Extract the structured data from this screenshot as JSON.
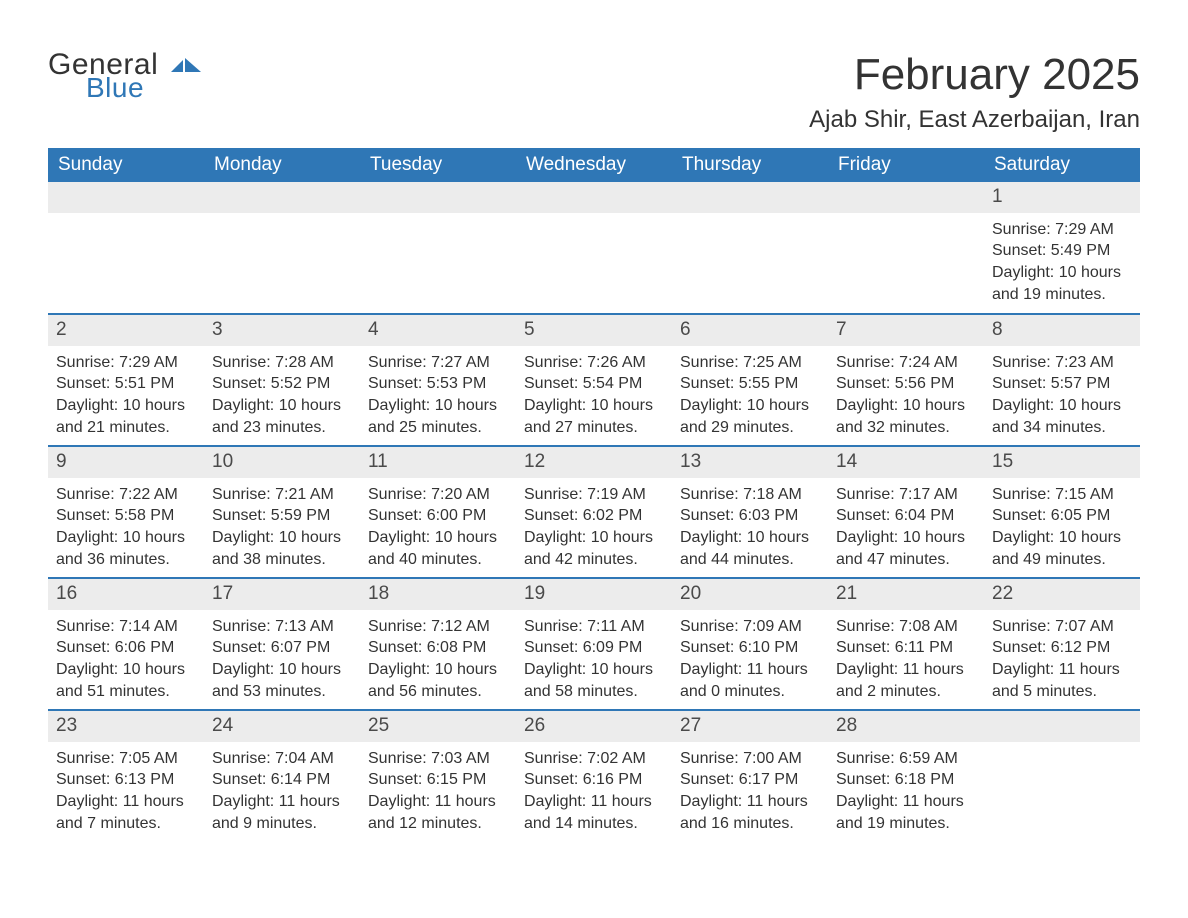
{
  "colors": {
    "header_bg": "#2f77b6",
    "header_text": "#ffffff",
    "band_bg": "#ececec",
    "row_border": "#2f77b6",
    "body_text": "#333333",
    "logo_blue": "#2f77b6",
    "page_bg": "#ffffff"
  },
  "fonts": {
    "month_title_size_pt": 33,
    "location_size_pt": 18,
    "weekday_size_pt": 14,
    "daynum_size_pt": 14,
    "body_size_pt": 12
  },
  "logo": {
    "general": "General",
    "blue": "Blue"
  },
  "title": "February 2025",
  "location": "Ajab Shir, East Azerbaijan, Iran",
  "weekdays": [
    "Sunday",
    "Monday",
    "Tuesday",
    "Wednesday",
    "Thursday",
    "Friday",
    "Saturday"
  ],
  "weeks": [
    [
      null,
      null,
      null,
      null,
      null,
      null,
      {
        "n": "1",
        "sunrise": "Sunrise: 7:29 AM",
        "sunset": "Sunset: 5:49 PM",
        "daylight1": "Daylight: 10 hours",
        "daylight2": "and 19 minutes."
      }
    ],
    [
      {
        "n": "2",
        "sunrise": "Sunrise: 7:29 AM",
        "sunset": "Sunset: 5:51 PM",
        "daylight1": "Daylight: 10 hours",
        "daylight2": "and 21 minutes."
      },
      {
        "n": "3",
        "sunrise": "Sunrise: 7:28 AM",
        "sunset": "Sunset: 5:52 PM",
        "daylight1": "Daylight: 10 hours",
        "daylight2": "and 23 minutes."
      },
      {
        "n": "4",
        "sunrise": "Sunrise: 7:27 AM",
        "sunset": "Sunset: 5:53 PM",
        "daylight1": "Daylight: 10 hours",
        "daylight2": "and 25 minutes."
      },
      {
        "n": "5",
        "sunrise": "Sunrise: 7:26 AM",
        "sunset": "Sunset: 5:54 PM",
        "daylight1": "Daylight: 10 hours",
        "daylight2": "and 27 minutes."
      },
      {
        "n": "6",
        "sunrise": "Sunrise: 7:25 AM",
        "sunset": "Sunset: 5:55 PM",
        "daylight1": "Daylight: 10 hours",
        "daylight2": "and 29 minutes."
      },
      {
        "n": "7",
        "sunrise": "Sunrise: 7:24 AM",
        "sunset": "Sunset: 5:56 PM",
        "daylight1": "Daylight: 10 hours",
        "daylight2": "and 32 minutes."
      },
      {
        "n": "8",
        "sunrise": "Sunrise: 7:23 AM",
        "sunset": "Sunset: 5:57 PM",
        "daylight1": "Daylight: 10 hours",
        "daylight2": "and 34 minutes."
      }
    ],
    [
      {
        "n": "9",
        "sunrise": "Sunrise: 7:22 AM",
        "sunset": "Sunset: 5:58 PM",
        "daylight1": "Daylight: 10 hours",
        "daylight2": "and 36 minutes."
      },
      {
        "n": "10",
        "sunrise": "Sunrise: 7:21 AM",
        "sunset": "Sunset: 5:59 PM",
        "daylight1": "Daylight: 10 hours",
        "daylight2": "and 38 minutes."
      },
      {
        "n": "11",
        "sunrise": "Sunrise: 7:20 AM",
        "sunset": "Sunset: 6:00 PM",
        "daylight1": "Daylight: 10 hours",
        "daylight2": "and 40 minutes."
      },
      {
        "n": "12",
        "sunrise": "Sunrise: 7:19 AM",
        "sunset": "Sunset: 6:02 PM",
        "daylight1": "Daylight: 10 hours",
        "daylight2": "and 42 minutes."
      },
      {
        "n": "13",
        "sunrise": "Sunrise: 7:18 AM",
        "sunset": "Sunset: 6:03 PM",
        "daylight1": "Daylight: 10 hours",
        "daylight2": "and 44 minutes."
      },
      {
        "n": "14",
        "sunrise": "Sunrise: 7:17 AM",
        "sunset": "Sunset: 6:04 PM",
        "daylight1": "Daylight: 10 hours",
        "daylight2": "and 47 minutes."
      },
      {
        "n": "15",
        "sunrise": "Sunrise: 7:15 AM",
        "sunset": "Sunset: 6:05 PM",
        "daylight1": "Daylight: 10 hours",
        "daylight2": "and 49 minutes."
      }
    ],
    [
      {
        "n": "16",
        "sunrise": "Sunrise: 7:14 AM",
        "sunset": "Sunset: 6:06 PM",
        "daylight1": "Daylight: 10 hours",
        "daylight2": "and 51 minutes."
      },
      {
        "n": "17",
        "sunrise": "Sunrise: 7:13 AM",
        "sunset": "Sunset: 6:07 PM",
        "daylight1": "Daylight: 10 hours",
        "daylight2": "and 53 minutes."
      },
      {
        "n": "18",
        "sunrise": "Sunrise: 7:12 AM",
        "sunset": "Sunset: 6:08 PM",
        "daylight1": "Daylight: 10 hours",
        "daylight2": "and 56 minutes."
      },
      {
        "n": "19",
        "sunrise": "Sunrise: 7:11 AM",
        "sunset": "Sunset: 6:09 PM",
        "daylight1": "Daylight: 10 hours",
        "daylight2": "and 58 minutes."
      },
      {
        "n": "20",
        "sunrise": "Sunrise: 7:09 AM",
        "sunset": "Sunset: 6:10 PM",
        "daylight1": "Daylight: 11 hours",
        "daylight2": "and 0 minutes."
      },
      {
        "n": "21",
        "sunrise": "Sunrise: 7:08 AM",
        "sunset": "Sunset: 6:11 PM",
        "daylight1": "Daylight: 11 hours",
        "daylight2": "and 2 minutes."
      },
      {
        "n": "22",
        "sunrise": "Sunrise: 7:07 AM",
        "sunset": "Sunset: 6:12 PM",
        "daylight1": "Daylight: 11 hours",
        "daylight2": "and 5 minutes."
      }
    ],
    [
      {
        "n": "23",
        "sunrise": "Sunrise: 7:05 AM",
        "sunset": "Sunset: 6:13 PM",
        "daylight1": "Daylight: 11 hours",
        "daylight2": "and 7 minutes."
      },
      {
        "n": "24",
        "sunrise": "Sunrise: 7:04 AM",
        "sunset": "Sunset: 6:14 PM",
        "daylight1": "Daylight: 11 hours",
        "daylight2": "and 9 minutes."
      },
      {
        "n": "25",
        "sunrise": "Sunrise: 7:03 AM",
        "sunset": "Sunset: 6:15 PM",
        "daylight1": "Daylight: 11 hours",
        "daylight2": "and 12 minutes."
      },
      {
        "n": "26",
        "sunrise": "Sunrise: 7:02 AM",
        "sunset": "Sunset: 6:16 PM",
        "daylight1": "Daylight: 11 hours",
        "daylight2": "and 14 minutes."
      },
      {
        "n": "27",
        "sunrise": "Sunrise: 7:00 AM",
        "sunset": "Sunset: 6:17 PM",
        "daylight1": "Daylight: 11 hours",
        "daylight2": "and 16 minutes."
      },
      {
        "n": "28",
        "sunrise": "Sunrise: 6:59 AM",
        "sunset": "Sunset: 6:18 PM",
        "daylight1": "Daylight: 11 hours",
        "daylight2": "and 19 minutes."
      },
      null
    ]
  ]
}
